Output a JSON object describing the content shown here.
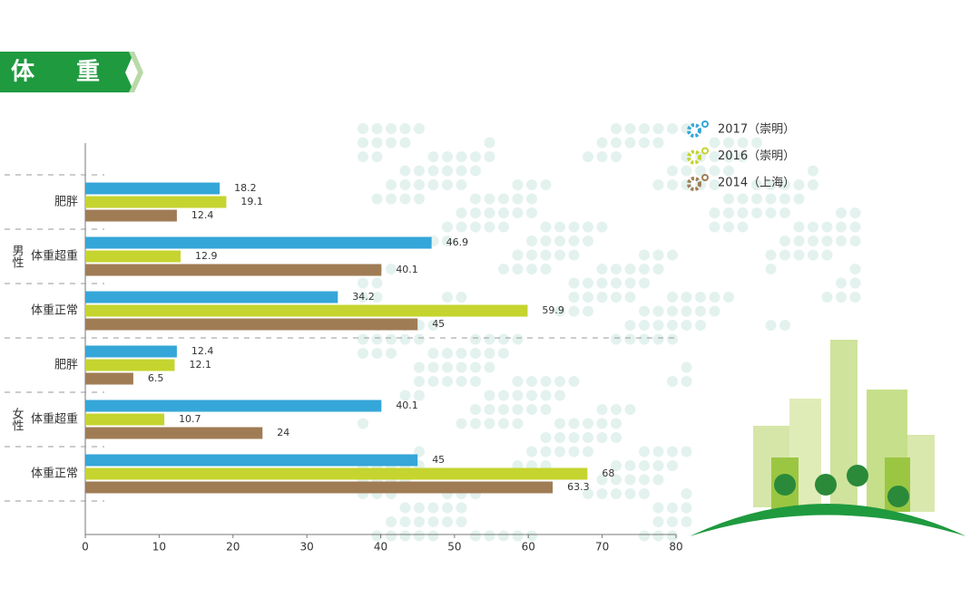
{
  "chart_data": {
    "type": "hbar",
    "title": "体重",
    "groups": [
      "男性",
      "女性"
    ],
    "categories": [
      "肥胖",
      "体重超重",
      "体重正常",
      "肥胖",
      "体重超重",
      "体重正常"
    ],
    "series": [
      {
        "name": "2017（崇明）",
        "color": "#35a6d8",
        "values": [
          18.2,
          46.9,
          34.2,
          12.4,
          40.1,
          45
        ]
      },
      {
        "name": "2016（崇明）",
        "color": "#c5d42e",
        "values": [
          19.1,
          12.9,
          59.9,
          12.1,
          10.7,
          68
        ]
      },
      {
        "name": "2014（上海）",
        "color": "#a07c55",
        "values": [
          12.4,
          40.1,
          45,
          6.5,
          24,
          63.3
        ]
      }
    ],
    "xlim": [
      0,
      80
    ],
    "xticks": [
      0,
      10,
      20,
      30,
      40,
      50,
      60,
      70,
      80
    ]
  }
}
